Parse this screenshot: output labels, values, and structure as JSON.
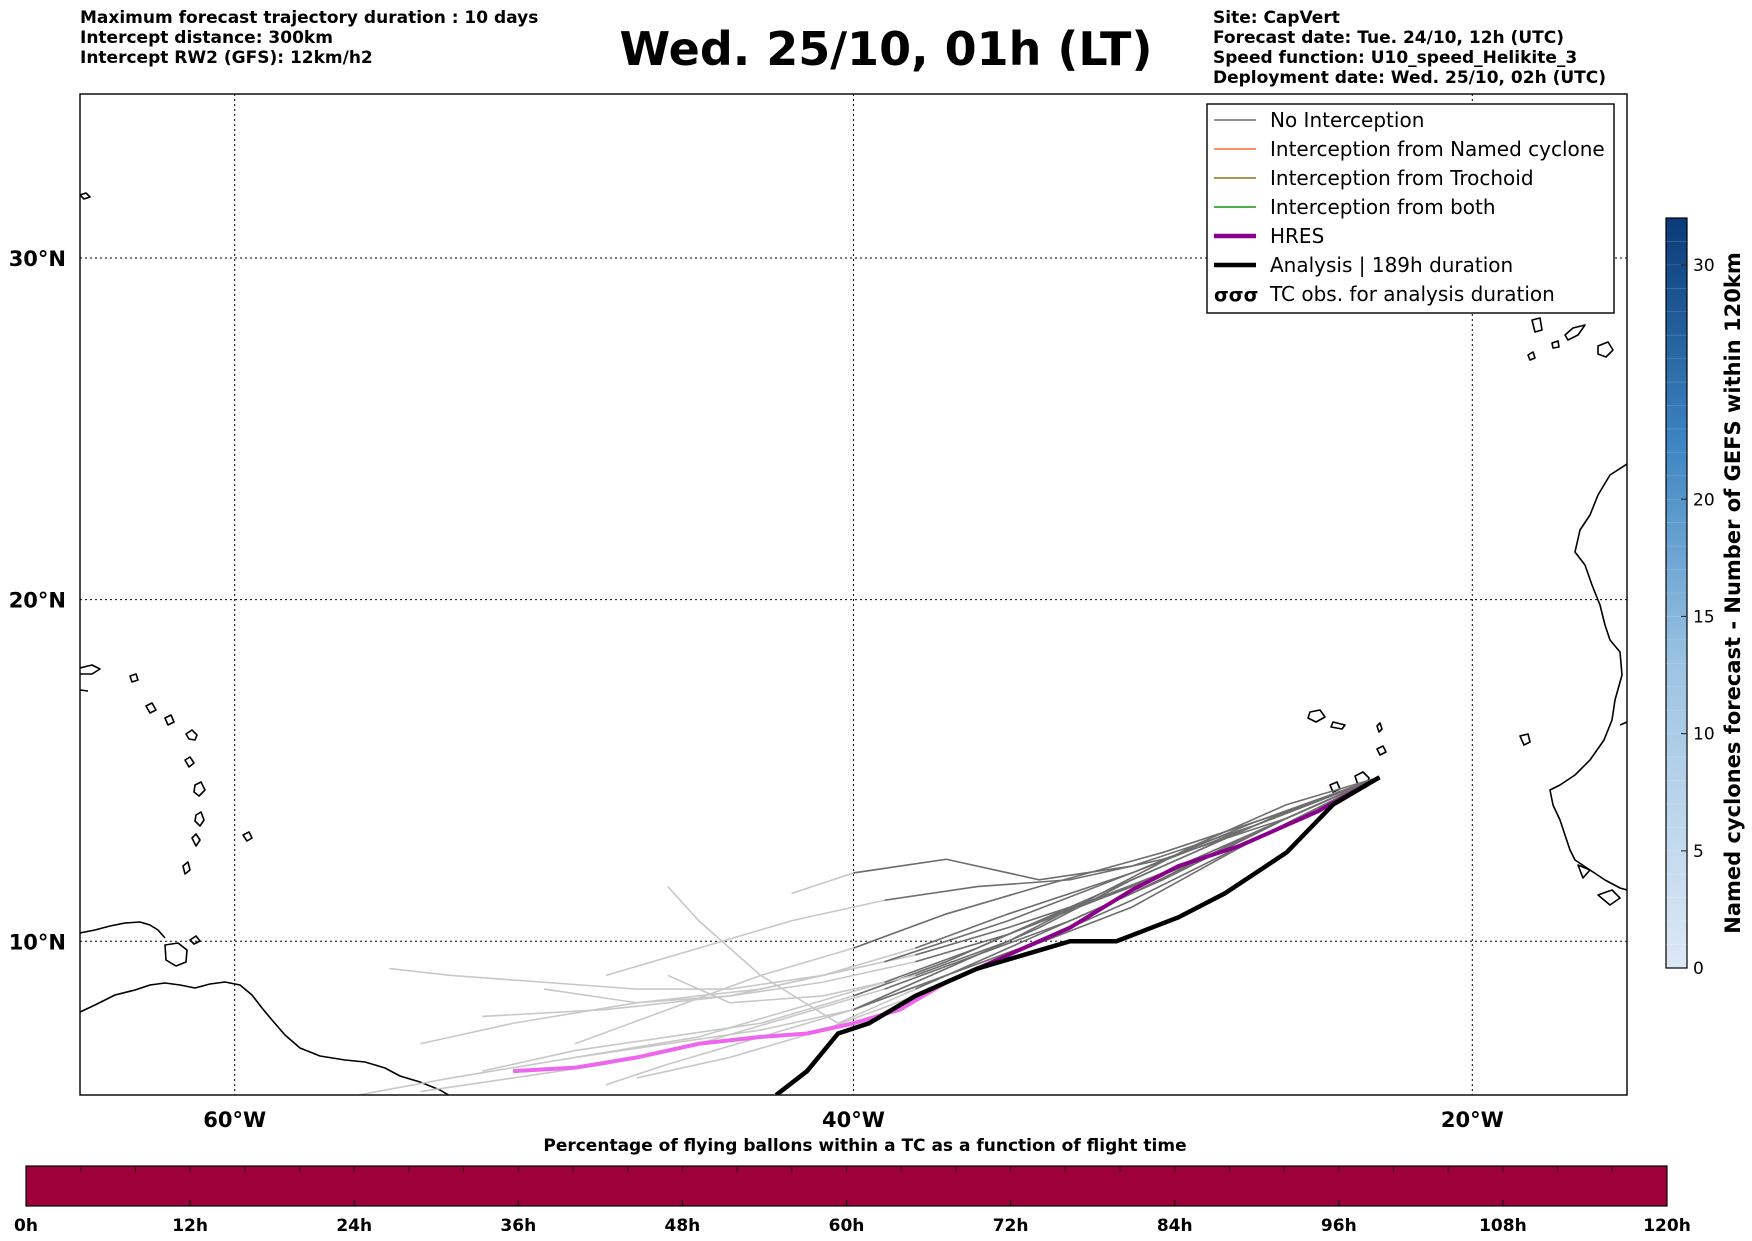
{
  "header_left": [
    "Maximum forecast trajectory duration : 10 days",
    "Intercept distance: 300km",
    "Intercept RW2 (GFS):  12km/h2"
  ],
  "header_right": [
    "Site: CapVert",
    "Forecast date: Tue. 24/10, 12h (UTC)",
    "Speed function: U10_speed_Helikite_3",
    "Deployment date: Wed. 25/10, 02h (UTC)"
  ],
  "title": "Wed. 25/10, 01h (LT)",
  "map": {
    "lon_range": [
      -65,
      -15
    ],
    "lat_range": [
      5.5,
      34.8
    ],
    "lon_ticks": [
      {
        "value": -60,
        "label": "60°W"
      },
      {
        "value": -40,
        "label": "40°W"
      },
      {
        "value": -20,
        "label": "20°W"
      }
    ],
    "lat_ticks": [
      {
        "value": 30,
        "label": "30°N"
      },
      {
        "value": 20,
        "label": "20°N"
      },
      {
        "value": 10,
        "label": "10°N"
      }
    ],
    "grid": "dotted",
    "launch_site": {
      "lon": -23.0,
      "lat": 14.8
    }
  },
  "legend": {
    "placement": "top-right",
    "entries": [
      {
        "label": "No Interception",
        "color": "#808080",
        "style": "line-thin"
      },
      {
        "label": "Interception from Named cyclone",
        "color": "#ff7f50",
        "style": "line-thin"
      },
      {
        "label": "Interception from Trochoid",
        "color": "#9a8a3a",
        "style": "line-thin"
      },
      {
        "label": "Interception from both",
        "color": "#3aa03a",
        "style": "line-thin"
      },
      {
        "label": "HRES",
        "color": "#8b008b",
        "style": "line-thick"
      },
      {
        "label": "Analysis | 189h duration",
        "color": "#000000",
        "style": "line-thick"
      },
      {
        "label": "TC obs. for analysis duration",
        "color": "#000000",
        "style": "cyclone-symbol"
      }
    ]
  },
  "colorbar_right": {
    "label": "Named cyclones forecast - Number of GEFS within 120km",
    "min": 0,
    "max": 32,
    "ticks": [
      0,
      5,
      10,
      15,
      20,
      30
    ],
    "color_low": "#dde8f5",
    "color_high": "#0b3a78"
  },
  "colorbar_bottom": {
    "title": "Percentage of flying ballons within a TC as a function of flight time",
    "fill_color": "#9e003a",
    "ticks": [
      "0h",
      "12h",
      "24h",
      "36h",
      "48h",
      "60h",
      "72h",
      "84h",
      "96h",
      "108h",
      "120h"
    ]
  },
  "chart_data": {
    "type": "line",
    "title": "Wed. 25/10, 01h (LT)",
    "xlabel": "",
    "ylabel": "",
    "xlim": [
      -65,
      -15
    ],
    "ylim": [
      5.5,
      34.8
    ],
    "series": [
      {
        "name": "HRES",
        "x": [
          -23.0,
          -25.0,
          -27.5,
          -29.5,
          -31.0,
          -33.0,
          -35.0,
          -37.0,
          -38.5,
          -40.0,
          -41.5,
          -43.0,
          -45.0,
          -47.0,
          -49.0,
          -51.0
        ],
        "y": [
          14.8,
          13.8,
          12.8,
          12.2,
          11.5,
          10.4,
          9.6,
          8.8,
          8.0,
          7.6,
          7.3,
          7.2,
          7.0,
          6.6,
          6.3,
          6.2
        ],
        "color": "#8b008b"
      },
      {
        "name": "Analysis | 189h duration",
        "x": [
          -23.0,
          -24.5,
          -26.0,
          -28.0,
          -29.5,
          -31.5,
          -33.0,
          -34.5,
          -36.0,
          -38.0,
          -39.5,
          -40.5,
          -41.5,
          -42.5
        ],
        "y": [
          14.8,
          14.0,
          12.6,
          11.4,
          10.7,
          10.0,
          10.0,
          9.6,
          9.2,
          8.4,
          7.6,
          7.3,
          6.2,
          5.5
        ],
        "color": "#000000"
      }
    ],
    "ensemble_members": [
      {
        "x": [
          -23,
          -27,
          -31,
          -35,
          -38,
          -41,
          -44,
          -48,
          -52
        ],
        "y": [
          14.8,
          13.5,
          12.0,
          10.8,
          9.8,
          9.0,
          8.4,
          8.0,
          7.8
        ]
      },
      {
        "x": [
          -23,
          -27,
          -31,
          -35,
          -38,
          -41,
          -44,
          -47,
          -50
        ],
        "y": [
          14.8,
          13.2,
          11.6,
          10.2,
          9.4,
          8.8,
          8.4,
          8.2,
          8.6
        ]
      },
      {
        "x": [
          -23,
          -26,
          -30,
          -34,
          -37,
          -40,
          -43,
          -46,
          -49
        ],
        "y": [
          14.8,
          13.8,
          12.6,
          11.6,
          10.8,
          9.8,
          9.0,
          8.0,
          7.0
        ]
      },
      {
        "x": [
          -23,
          -27,
          -31,
          -34,
          -37,
          -40,
          -43,
          -46,
          -49
        ],
        "y": [
          14.8,
          13.0,
          11.2,
          10.0,
          9.0,
          8.0,
          7.4,
          7.0,
          6.6
        ]
      },
      {
        "x": [
          -23,
          -26,
          -30,
          -33,
          -36,
          -39,
          -42,
          -45,
          -48
        ],
        "y": [
          14.8,
          13.6,
          12.4,
          11.8,
          11.6,
          11.2,
          10.6,
          9.8,
          9.0
        ]
      },
      {
        "x": [
          -23,
          -27,
          -31,
          -34,
          -37,
          -40,
          -42
        ],
        "y": [
          14.8,
          13.4,
          12.2,
          11.8,
          12.4,
          12.0,
          11.4
        ]
      },
      {
        "x": [
          -23,
          -27,
          -30,
          -34,
          -37,
          -40,
          -43,
          -46,
          -49,
          -52
        ],
        "y": [
          14.8,
          13.2,
          12.0,
          10.6,
          9.4,
          8.4,
          7.6,
          7.2,
          6.8,
          6.2
        ]
      },
      {
        "x": [
          -23,
          -26,
          -30,
          -33,
          -36,
          -39,
          -42,
          -45,
          -48,
          -51,
          -54
        ],
        "y": [
          14.8,
          13.6,
          11.8,
          10.6,
          9.6,
          8.6,
          7.8,
          7.0,
          6.4,
          6.0,
          5.6
        ]
      },
      {
        "x": [
          -23,
          -27,
          -31,
          -35,
          -38,
          -41,
          -44,
          -47
        ],
        "y": [
          14.8,
          13.0,
          11.0,
          9.6,
          8.4,
          7.4,
          6.6,
          6.0
        ]
      },
      {
        "x": [
          -23,
          -26,
          -29,
          -32,
          -35,
          -38,
          -41,
          -44,
          -46
        ],
        "y": [
          14.8,
          14.0,
          12.8,
          11.4,
          10.0,
          9.0,
          8.4,
          8.2,
          9.0
        ]
      },
      {
        "x": [
          -23,
          -27,
          -31,
          -34,
          -37,
          -40,
          -43,
          -46,
          -48
        ],
        "y": [
          14.8,
          13.4,
          11.8,
          10.4,
          9.2,
          8.0,
          7.2,
          6.4,
          5.8
        ]
      },
      {
        "x": [
          -23,
          -27,
          -31,
          -35,
          -38,
          -40.5,
          -43,
          -45,
          -46
        ],
        "y": [
          14.8,
          13.2,
          11.4,
          9.8,
          8.6,
          7.6,
          9.0,
          10.6,
          11.6
        ]
      },
      {
        "x": [
          -23,
          -26,
          -29,
          -33,
          -36,
          -39,
          -42,
          -45,
          -49,
          -53,
          -56
        ],
        "y": [
          14.8,
          13.8,
          12.6,
          11.0,
          9.8,
          8.8,
          8.0,
          7.2,
          6.6,
          6.0,
          5.5
        ]
      },
      {
        "x": [
          -23,
          -27,
          -31,
          -35,
          -38,
          -41,
          -44,
          -47,
          -50,
          -53,
          -55
        ],
        "y": [
          14.8,
          13.0,
          11.6,
          10.4,
          9.6,
          9.0,
          8.6,
          8.6,
          8.8,
          9.0,
          9.2
        ]
      },
      {
        "x": [
          -23,
          -27,
          -31,
          -35,
          -39,
          -43,
          -47,
          -51,
          -54
        ],
        "y": [
          14.8,
          13.4,
          12.0,
          10.6,
          9.4,
          8.6,
          8.2,
          7.6,
          7.0
        ]
      }
    ],
    "tc_obs": []
  }
}
